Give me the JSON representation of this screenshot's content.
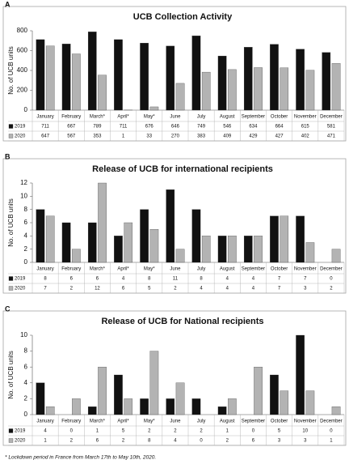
{
  "chart_data": [
    {
      "label": "A",
      "type": "bar",
      "title": "UCB Collection Activity",
      "y_label": "No. of UCB units",
      "categories": [
        "January",
        "February",
        "March*",
        "April*",
        "May*",
        "June",
        "July",
        "August",
        "September",
        "October",
        "November",
        "December"
      ],
      "series": [
        {
          "name": "2019",
          "color": "#111111",
          "values": [
            711,
            667,
            789,
            711,
            676,
            646,
            749,
            546,
            634,
            664,
            615,
            581
          ]
        },
        {
          "name": "2020",
          "color": "#b3b3b3",
          "values": [
            647,
            567,
            353,
            1,
            33,
            270,
            383,
            409,
            429,
            427,
            402,
            471
          ]
        }
      ],
      "ylim": [
        0,
        800
      ],
      "yticks": [
        0,
        200,
        400,
        600,
        800
      ]
    },
    {
      "label": "B",
      "type": "bar",
      "title": "Release of UCB for international recipients",
      "y_label": "No. of UCB units",
      "categories": [
        "January",
        "February",
        "March*",
        "April*",
        "May*",
        "June",
        "July",
        "August",
        "September",
        "October",
        "November",
        "December"
      ],
      "series": [
        {
          "name": "2019",
          "color": "#111111",
          "values": [
            8,
            6,
            6,
            4,
            8,
            11,
            8,
            4,
            4,
            7,
            7,
            0
          ]
        },
        {
          "name": "2020",
          "color": "#b3b3b3",
          "values": [
            7,
            2,
            12,
            6,
            5,
            2,
            4,
            4,
            4,
            7,
            3,
            2
          ]
        }
      ],
      "ylim": [
        0,
        12
      ],
      "yticks": [
        0,
        2,
        4,
        6,
        8,
        10,
        12
      ]
    },
    {
      "label": "C",
      "type": "bar",
      "title": "Release of UCB for National recipients",
      "y_label": "No. of UCB units",
      "categories": [
        "January",
        "February",
        "March*",
        "April*",
        "May*",
        "June",
        "July",
        "August",
        "September",
        "October",
        "November",
        "December"
      ],
      "series": [
        {
          "name": "2019",
          "color": "#111111",
          "values": [
            4,
            0,
            1,
            5,
            2,
            2,
            2,
            1,
            0,
            5,
            10,
            0
          ]
        },
        {
          "name": "2020",
          "color": "#b3b3b3",
          "values": [
            1,
            2,
            6,
            2,
            8,
            4,
            0,
            2,
            6,
            3,
            3,
            1
          ]
        }
      ],
      "ylim": [
        0,
        10
      ],
      "yticks": [
        0,
        2,
        4,
        6,
        8,
        10
      ]
    }
  ],
  "footnote": "* Lockdown period in France from March 17th to May 10th, 2020."
}
